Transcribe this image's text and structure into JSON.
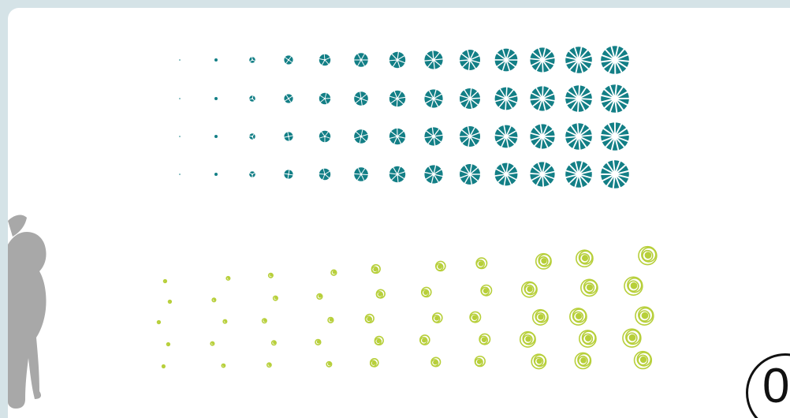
{
  "colors": {
    "background": "#d5e3e7",
    "panel": "#ffffff",
    "teal": "#137f86",
    "lime": "#b7cf3a",
    "silhouette": "#a8a8a8"
  },
  "icons": {
    "figure": "child-silhouette-icon",
    "badge": "circled-badge-icon"
  },
  "corner_badge": {
    "text": "0"
  },
  "teal_grid": {
    "rows": 4,
    "columns": 13,
    "segments": [
      1,
      2,
      3,
      4,
      5,
      6,
      7,
      8,
      9,
      10,
      11,
      12,
      13
    ]
  },
  "lime_grid": {
    "rows": 5,
    "columns": 13,
    "rings": [
      1,
      1,
      1,
      1,
      2,
      2,
      2,
      2,
      3,
      3,
      3,
      3,
      3
    ]
  }
}
